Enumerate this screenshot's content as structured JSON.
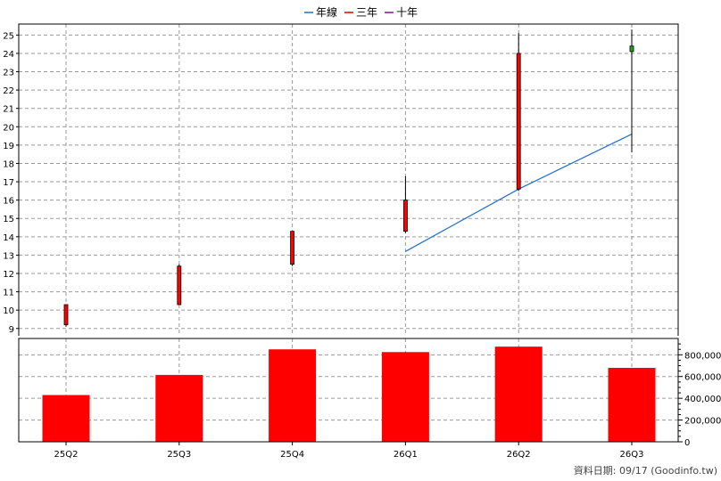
{
  "legend": [
    {
      "label": "年線",
      "color": "#1f6fd0"
    },
    {
      "label": "三年",
      "color": "#e00000"
    },
    {
      "label": "十年",
      "color": "#7a1a8a"
    }
  ],
  "footer": "資料日期: 09/17  (Goodinfo.tw)",
  "chart_data": [
    {
      "type": "candlestick",
      "categories": [
        "25Q2",
        "25Q3",
        "25Q4",
        "26Q1",
        "26Q2",
        "26Q3"
      ],
      "ylim": [
        8.6,
        25.6
      ],
      "yticks": [
        9,
        10,
        11,
        12,
        13,
        14,
        15,
        16,
        17,
        18,
        19,
        20,
        21,
        22,
        23,
        24,
        25
      ],
      "grid": true,
      "candles": [
        {
          "open": 9.2,
          "high": 10.3,
          "low": 9.1,
          "close": 10.3,
          "color": "#ff0000"
        },
        {
          "open": 10.3,
          "high": 12.5,
          "low": 10.3,
          "close": 12.4,
          "color": "#ff0000"
        },
        {
          "open": 12.5,
          "high": 14.3,
          "low": 12.4,
          "close": 14.3,
          "color": "#ff0000"
        },
        {
          "open": 14.3,
          "high": 17.3,
          "low": 14.2,
          "close": 16.0,
          "color": "#ff0000"
        },
        {
          "open": 16.6,
          "high": 25.1,
          "low": 16.5,
          "close": 24.0,
          "color": "#ff0000"
        },
        {
          "open": 24.1,
          "high": 25.3,
          "low": 18.6,
          "close": 24.4,
          "color": "#1fa51f"
        }
      ],
      "series": [
        {
          "name": "年線",
          "color": "#1f6fd0",
          "points": [
            [
              "26Q1",
              13.2
            ],
            [
              "26Q2",
              16.6
            ],
            [
              "26Q3",
              19.6
            ]
          ]
        }
      ]
    },
    {
      "type": "bar",
      "categories": [
        "25Q2",
        "25Q3",
        "25Q4",
        "26Q1",
        "26Q2",
        "26Q3"
      ],
      "values": [
        430000,
        615000,
        850000,
        825000,
        875000,
        680000
      ],
      "ylim": [
        0,
        950000
      ],
      "yticks": [
        0,
        200000,
        400000,
        600000,
        800000
      ],
      "ytick_labels": [
        "0",
        "200,000",
        "400,000",
        "600,000",
        "800,000"
      ],
      "color": "#ff0000",
      "grid": true
    }
  ]
}
